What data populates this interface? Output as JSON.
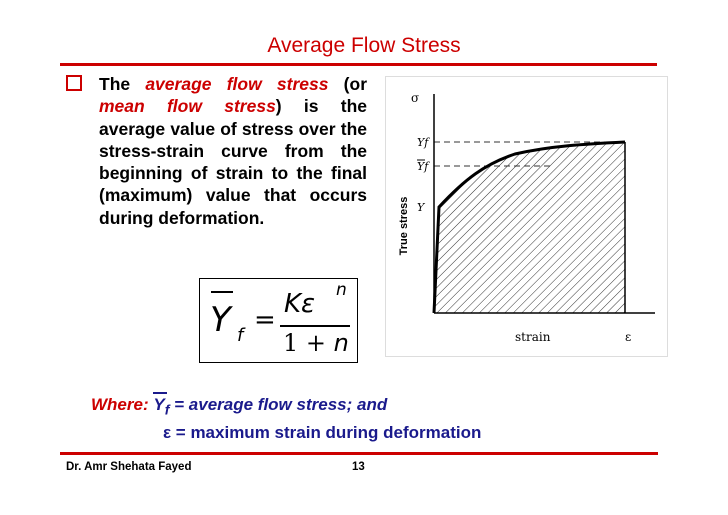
{
  "slide": {
    "title": "Average Flow Stress",
    "paragraph": {
      "prefix": "The ",
      "term1": "average flow stress",
      "mid": " (or ",
      "term2": "mean flow stress",
      "suffix": ") is the average value of stress over the stress-strain curve from the beginning of strain to the final (maximum) value that occurs during deformation."
    },
    "formula": {
      "lhs": "Y",
      "subscript": "f",
      "equals": "=",
      "numerator": "Kε",
      "exponent": "n",
      "den_one": "1",
      "den_plus": " + ",
      "den_n": "n"
    },
    "where": {
      "label": "Where:",
      "symbol": "Y",
      "subscript": "f",
      "definition": " = average flow stress; and",
      "eps_line": "ε = maximum strain during deformation"
    },
    "footer": {
      "author": "Dr. Amr Shehata Fayed",
      "page": "13"
    }
  },
  "chart_data": {
    "type": "area",
    "description_labels": {
      "y_symbol": "σ",
      "x_symbol": "ε",
      "ylabel": "True stress",
      "xlabel": "strain",
      "level_Yf": "Yf",
      "level_Yf_bar": "Yf",
      "level_Y": "Y"
    },
    "strain_hardening_exponent_shape": "power curve from yield Y to final Yf, shaded area under curve",
    "colors": {
      "accent": "#cc0000",
      "note": "#1a1a8c"
    }
  }
}
